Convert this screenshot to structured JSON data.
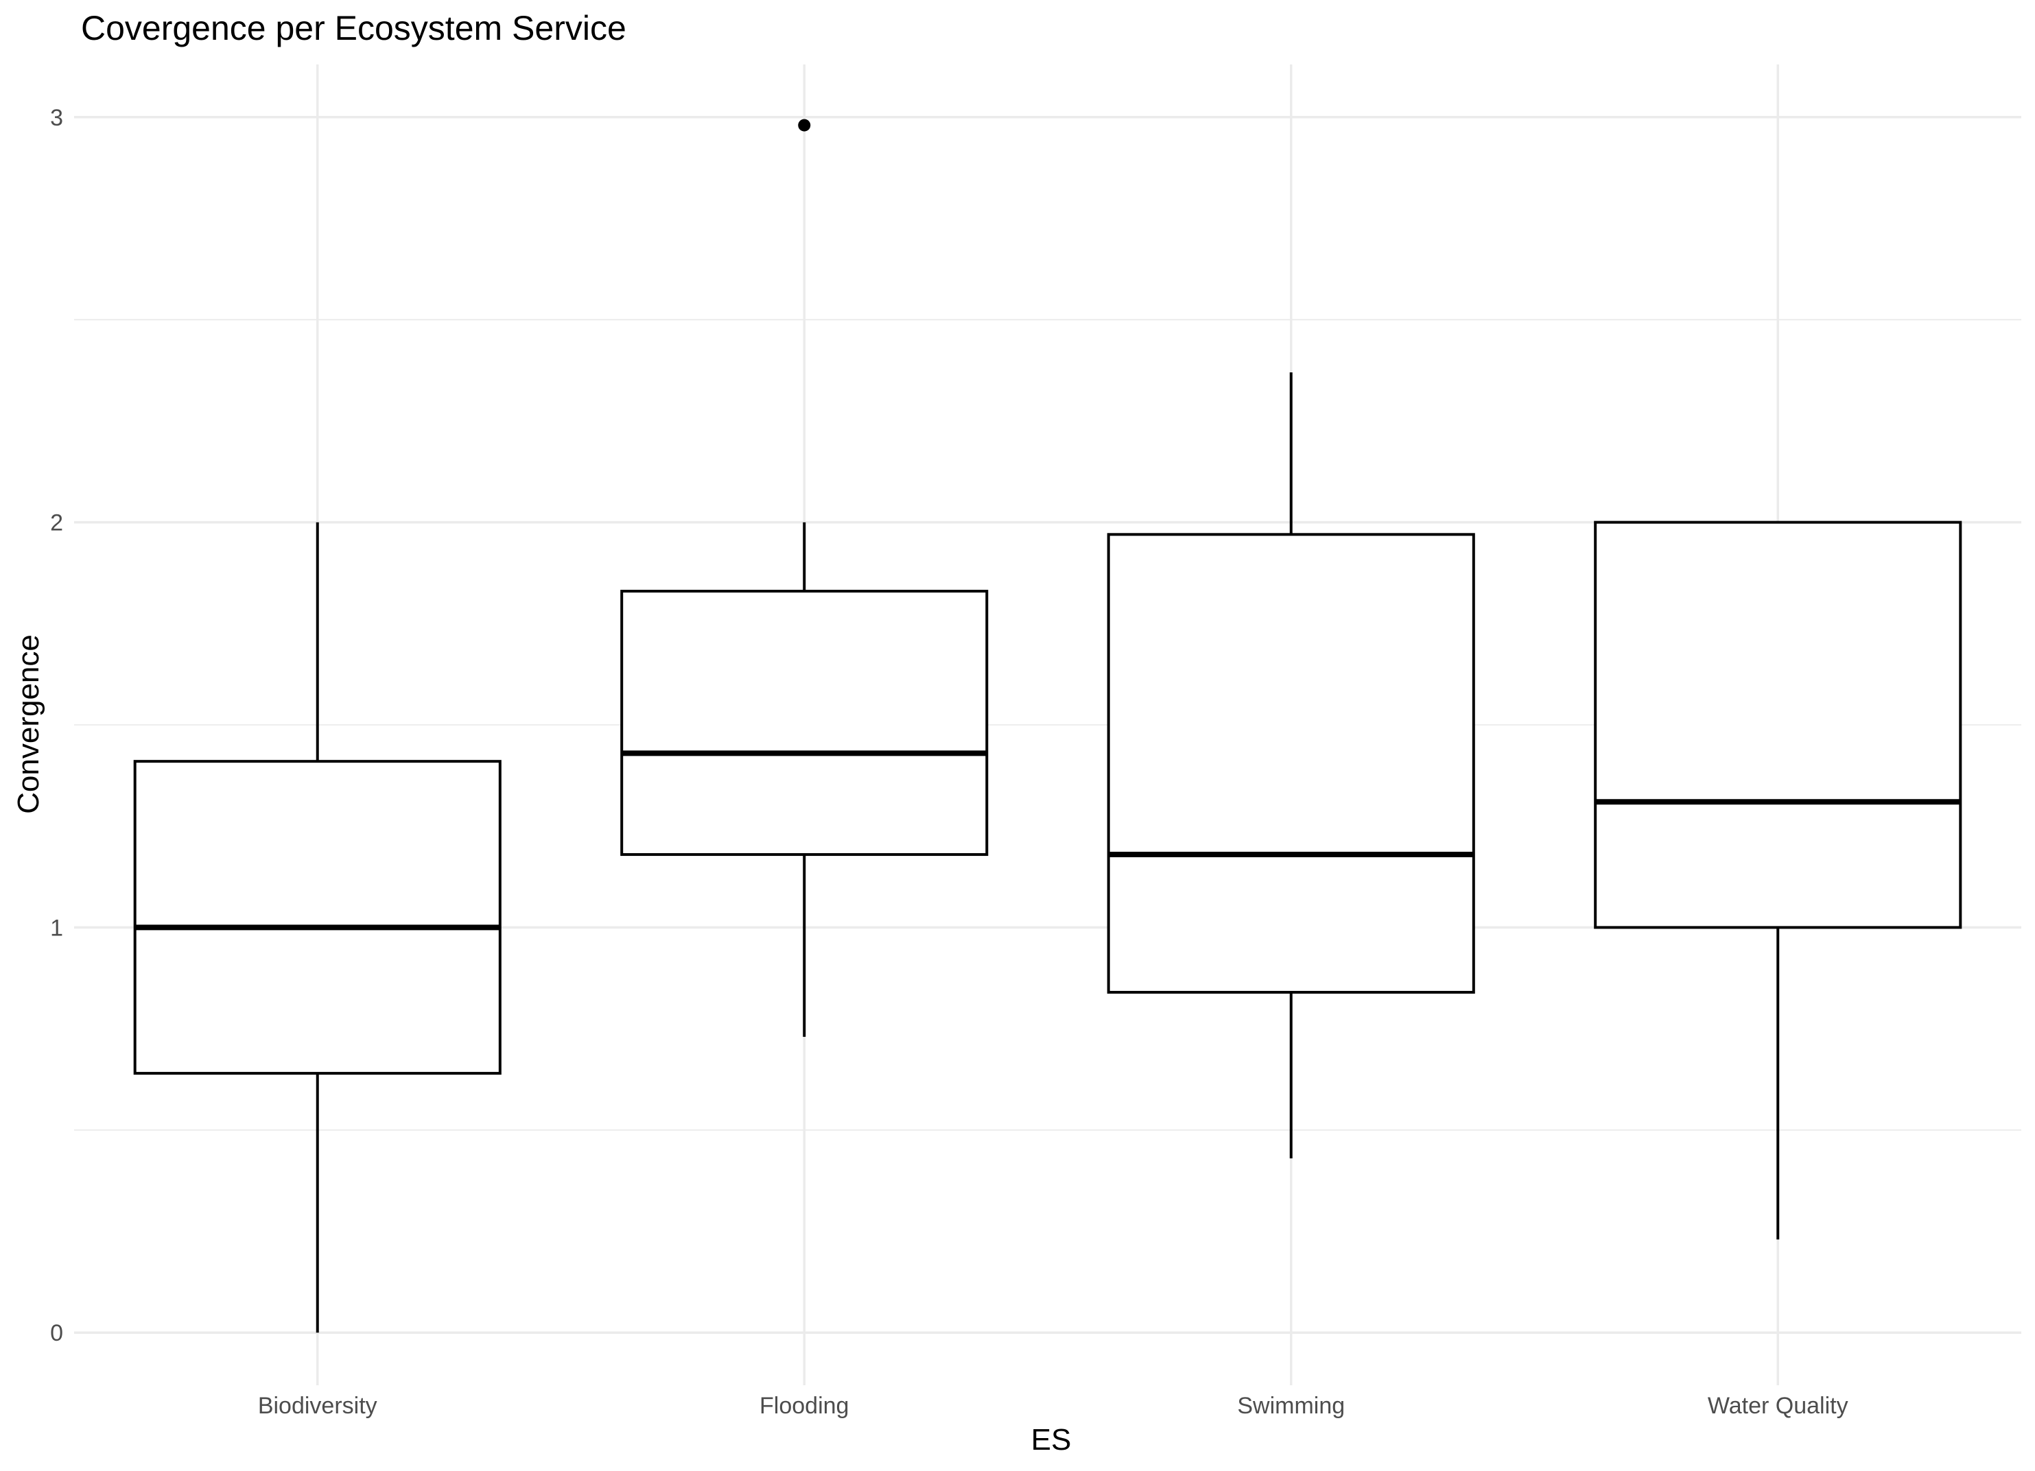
{
  "chart_data": {
    "type": "boxplot",
    "title": "Covergence per Ecosystem Service",
    "xlabel": "ES",
    "ylabel": "Convergence",
    "ylim": [
      -0.13,
      3.13
    ],
    "yticks": [
      0,
      1,
      2,
      3
    ],
    "grid": true,
    "categories": [
      "Biodiversity",
      "Flooding",
      "Swimming",
      "Water Quality"
    ],
    "boxes": [
      {
        "category": "Biodiversity",
        "whisker_low": 0.0,
        "q1": 0.64,
        "median": 1.0,
        "q3": 1.41,
        "whisker_high": 2.0,
        "outliers": []
      },
      {
        "category": "Flooding",
        "whisker_low": 0.73,
        "q1": 1.18,
        "median": 1.43,
        "q3": 1.83,
        "whisker_high": 2.0,
        "outliers": [
          2.98
        ]
      },
      {
        "category": "Swimming",
        "whisker_low": 0.43,
        "q1": 0.84,
        "median": 1.18,
        "q3": 1.97,
        "whisker_high": 2.37,
        "outliers": []
      },
      {
        "category": "Water Quality",
        "whisker_low": 0.23,
        "q1": 1.0,
        "median": 1.31,
        "q3": 2.0,
        "whisker_high": 2.0,
        "outliers": []
      }
    ]
  }
}
